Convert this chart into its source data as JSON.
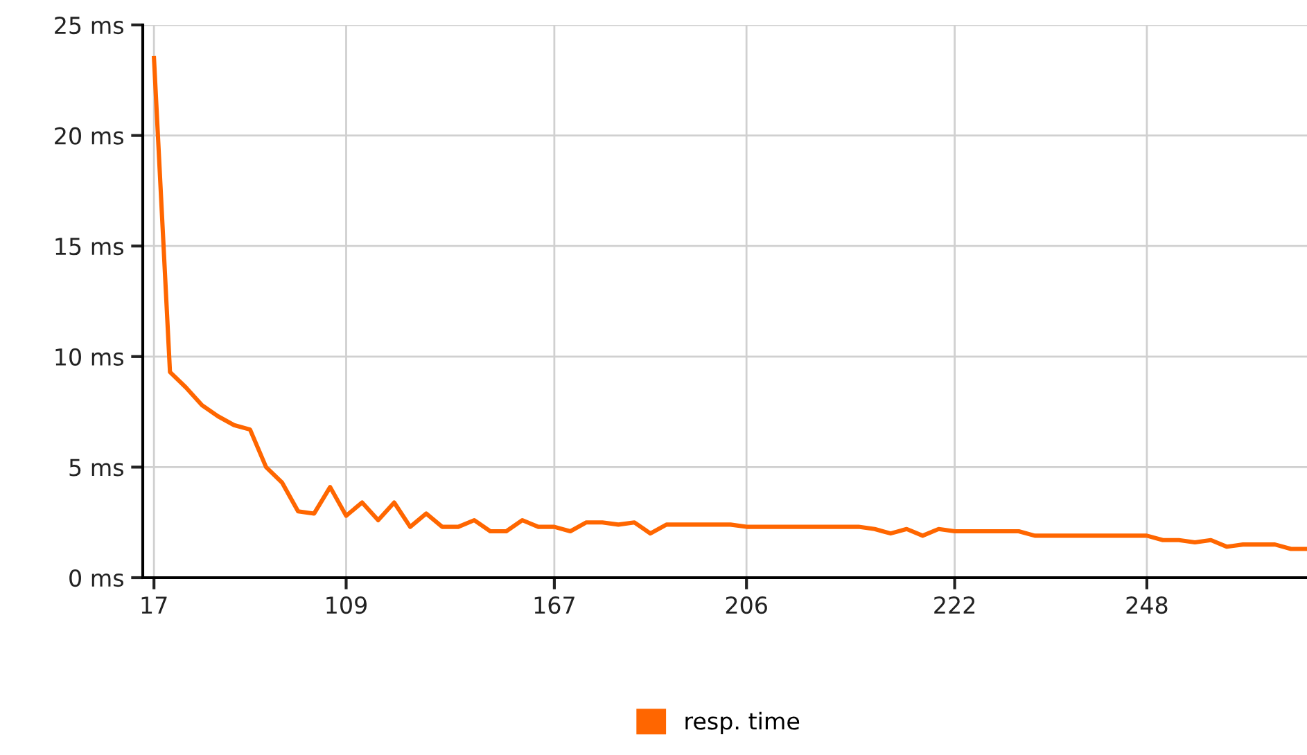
{
  "chart_data": {
    "type": "line",
    "categories": [
      "17",
      null,
      null,
      null,
      null,
      null,
      null,
      null,
      null,
      null,
      null,
      null,
      "109",
      null,
      null,
      null,
      null,
      null,
      null,
      null,
      null,
      null,
      null,
      null,
      null,
      "167",
      null,
      null,
      null,
      null,
      null,
      null,
      null,
      null,
      null,
      null,
      null,
      "206",
      null,
      null,
      null,
      null,
      null,
      null,
      null,
      null,
      null,
      null,
      null,
      null,
      "222",
      null,
      null,
      null,
      null,
      null,
      null,
      null,
      null,
      null,
      null,
      null,
      "248",
      null,
      null,
      null,
      null,
      null,
      null,
      null,
      null,
      null,
      null
    ],
    "series": [
      {
        "name": "resp. time",
        "color": "#ff6600",
        "values": [
          23.5,
          9.3,
          8.6,
          7.8,
          7.3,
          6.9,
          6.7,
          5.0,
          4.3,
          3.0,
          2.9,
          4.1,
          2.8,
          3.4,
          2.6,
          3.4,
          2.3,
          2.9,
          2.3,
          2.3,
          2.6,
          2.1,
          2.1,
          2.6,
          2.3,
          2.3,
          2.1,
          2.5,
          2.5,
          2.4,
          2.5,
          2.0,
          2.4,
          2.4,
          2.4,
          2.4,
          2.4,
          2.3,
          2.3,
          2.3,
          2.3,
          2.3,
          2.3,
          2.3,
          2.3,
          2.2,
          2.0,
          2.2,
          1.9,
          2.2,
          2.1,
          2.1,
          2.1,
          2.1,
          2.1,
          1.9,
          1.9,
          1.9,
          1.9,
          1.9,
          1.9,
          1.9,
          1.9,
          1.7,
          1.7,
          1.6,
          1.7,
          1.4,
          1.5,
          1.5,
          1.5,
          1.3,
          1.3
        ]
      }
    ],
    "ylim": [
      0,
      25
    ],
    "yticks": [
      {
        "value": 0,
        "label": "0 ms"
      },
      {
        "value": 5,
        "label": "5 ms"
      },
      {
        "value": 10,
        "label": "10 ms"
      },
      {
        "value": 15,
        "label": "15 ms"
      },
      {
        "value": 20,
        "label": "20 ms"
      },
      {
        "value": 25,
        "label": "25 ms"
      }
    ],
    "grid": true,
    "legend": "bottom",
    "marker": "none",
    "line_style": "solid"
  }
}
